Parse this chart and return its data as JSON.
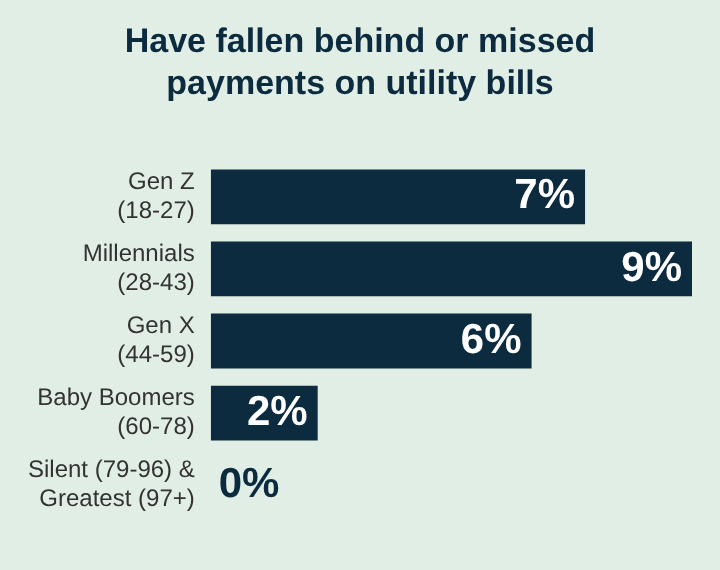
{
  "chart_data": {
    "type": "bar",
    "orientation": "horizontal",
    "title": "Have fallen behind or missed payments on utility bills",
    "categories": [
      "Gen Z\n(18-27)",
      "Millennials\n(28-43)",
      "Gen X\n(44-59)",
      "Baby Boomers\n(60-78)",
      "Silent (79-96) &\nGreatest (97+)"
    ],
    "values": [
      7,
      9,
      6,
      2,
      0
    ],
    "value_labels": [
      "7%",
      "9%",
      "6%",
      "2%",
      "0%"
    ],
    "color": "#0c2b3f",
    "grid": false,
    "legend": false
  }
}
